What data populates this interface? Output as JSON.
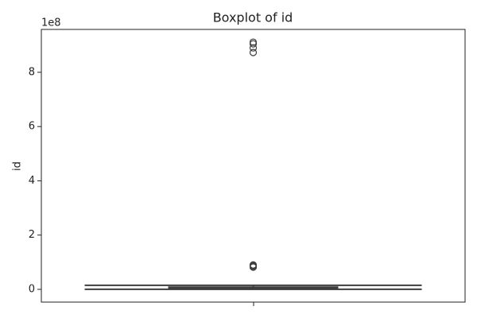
{
  "chart_data": {
    "type": "box",
    "title": "Boxplot of id",
    "ylabel": "id",
    "offset_label": "1e8",
    "color": "#3d3d3d",
    "box": {
      "min": 0.001,
      "q1": 0.01,
      "median": 0.03,
      "q3": 0.08,
      "max": 0.15,
      "outliers": [
        0.82,
        0.85,
        0.88,
        0.9,
        8.73,
        8.9,
        9.05,
        9.11
      ]
    },
    "ylim": [
      -0.47,
      9.58
    ],
    "yticks": [
      0,
      2,
      4,
      6,
      8
    ]
  }
}
